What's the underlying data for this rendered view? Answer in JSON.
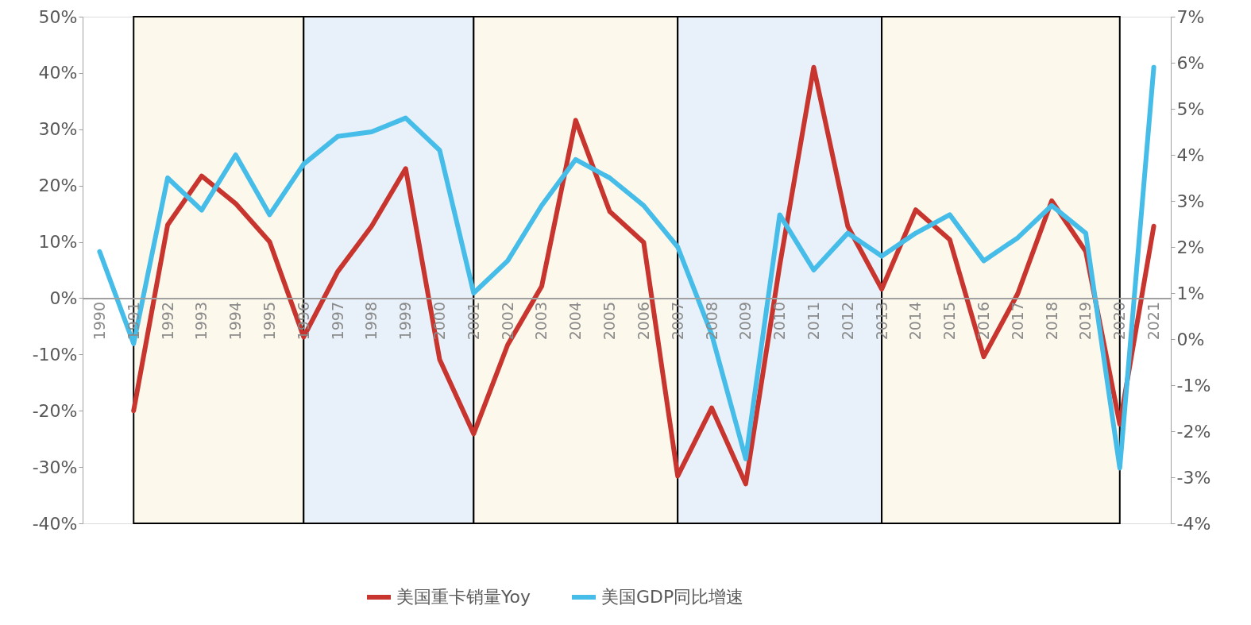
{
  "chart_data": {
    "type": "line",
    "x": [
      1990,
      1991,
      1992,
      1993,
      1994,
      1995,
      1996,
      1997,
      1998,
      1999,
      2000,
      2001,
      2002,
      2003,
      2004,
      2005,
      2006,
      2007,
      2008,
      2009,
      2010,
      2011,
      2012,
      2013,
      2014,
      2015,
      2016,
      2017,
      2018,
      2019,
      2020,
      2021
    ],
    "series": [
      {
        "name": "美国重卡销量Yoy",
        "color": "#c8352f",
        "values": [
          null,
          -20,
          13,
          21.7,
          16.8,
          10,
          -6.9,
          4.7,
          12.8,
          23,
          -10.9,
          -24.1,
          -8.3,
          2.1,
          31.6,
          15.4,
          9.9,
          -31.6,
          -19.5,
          -33,
          5.8,
          41,
          12.8,
          1.6,
          15.7,
          10.4,
          -10.4,
          0.8,
          17.3,
          8.3,
          -22.4,
          12.8
        ]
      },
      {
        "name": "美国GDP同比增速",
        "color": "#45bde8",
        "axis": "y2",
        "values": [
          1.9,
          -0.1,
          3.5,
          2.8,
          4.0,
          2.7,
          3.8,
          4.4,
          4.5,
          4.8,
          4.1,
          1.0,
          1.7,
          2.9,
          3.9,
          3.5,
          2.9,
          2.0,
          0.1,
          -2.6,
          2.7,
          1.5,
          2.3,
          1.8,
          2.3,
          2.7,
          1.7,
          2.2,
          2.9,
          2.3,
          -2.8,
          5.9
        ]
      }
    ],
    "xlim": [
      1989.5,
      2021.5
    ],
    "xticks": [
      1990,
      1991,
      1992,
      1993,
      1994,
      1995,
      1996,
      1997,
      1998,
      1999,
      2000,
      2001,
      2002,
      2003,
      2004,
      2005,
      2006,
      2007,
      2008,
      2009,
      2010,
      2011,
      2012,
      2013,
      2014,
      2015,
      2016,
      2017,
      2018,
      2019,
      2020,
      2021
    ],
    "ylim": [
      -40,
      50
    ],
    "yticks": [
      {
        "value": -40,
        "label": "-40%"
      },
      {
        "value": -30,
        "label": "-30%"
      },
      {
        "value": -20,
        "label": "-20%"
      },
      {
        "value": -10,
        "label": "-10%"
      },
      {
        "value": 0,
        "label": "0%"
      },
      {
        "value": 10,
        "label": "10%"
      },
      {
        "value": 20,
        "label": "20%"
      },
      {
        "value": 30,
        "label": "30%"
      },
      {
        "value": 40,
        "label": "40%"
      },
      {
        "value": 50,
        "label": "50%"
      }
    ],
    "y2lim": [
      -4,
      7
    ],
    "y2ticks": [
      {
        "value": -4,
        "label": "-4%"
      },
      {
        "value": -3,
        "label": "-3%"
      },
      {
        "value": -2,
        "label": "-2%"
      },
      {
        "value": -1,
        "label": "-1%"
      },
      {
        "value": 0,
        "label": "0%"
      },
      {
        "value": 1,
        "label": "1%"
      },
      {
        "value": 2,
        "label": "2%"
      },
      {
        "value": 3,
        "label": "3%"
      },
      {
        "value": 4,
        "label": "4%"
      },
      {
        "value": 5,
        "label": "5%"
      },
      {
        "value": 6,
        "label": "6%"
      },
      {
        "value": 7,
        "label": "7%"
      }
    ],
    "bands": [
      {
        "axis": "x",
        "from": 1991,
        "to": 1996,
        "color": "#fdf8ec"
      },
      {
        "axis": "x",
        "from": 1996,
        "to": 2001,
        "color": "#e8f1f9"
      },
      {
        "axis": "x",
        "from": 2001,
        "to": 2007,
        "color": "#fdf8ec"
      },
      {
        "axis": "x",
        "from": 2007,
        "to": 2013,
        "color": "#e8f1f9"
      },
      {
        "axis": "x",
        "from": 2013,
        "to": 2020,
        "color": "#fdf8ec"
      }
    ],
    "grid": false,
    "legend": "bottom",
    "marker": "none",
    "line_style": "solid"
  }
}
